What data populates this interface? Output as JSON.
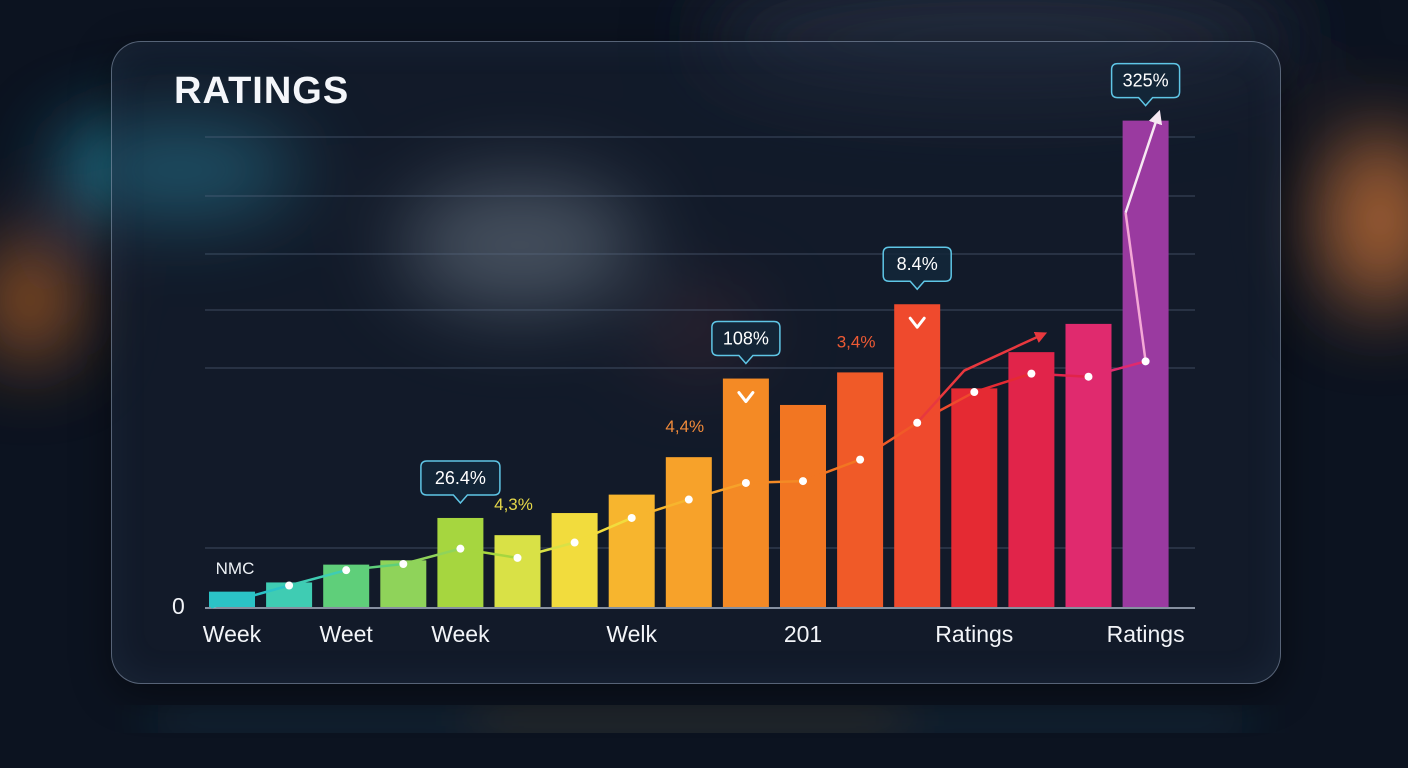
{
  "colors": {
    "background": "#0c1320",
    "panel_border": "#aabed7",
    "gridline": "#5a6b85",
    "axis": "#aeb8c8",
    "callout_border": "#5fc6e6",
    "bars": [
      "#2bc3c6",
      "#3fccb3",
      "#5fcf7a",
      "#8fd35a",
      "#a6d63f",
      "#d9e146",
      "#f2dc3d",
      "#f7b52e",
      "#f7a22a",
      "#f48a25",
      "#f27622",
      "#f05a28",
      "#ef4a2d",
      "#e52a33",
      "#e1244a",
      "#e02a6e",
      "#9a3aa0"
    ]
  },
  "chart_data": {
    "type": "bar",
    "title": "RATINGS",
    "bar_count": 17,
    "values": [
      2.5,
      4.0,
      6.9,
      7.6,
      14.5,
      11.7,
      15.3,
      18.3,
      24.4,
      37.2,
      32.9,
      38.2,
      49.3,
      35.6,
      41.5,
      46.1,
      79.2
    ],
    "trend_line": [
      null,
      3.5,
      6.0,
      7.0,
      9.5,
      8.0,
      10.5,
      14.5,
      17.5,
      20.2,
      20.5,
      24.0,
      30.0,
      35.0,
      38.0,
      37.5,
      40.0
    ],
    "ylim": [
      0,
      85
    ],
    "y_tick_label": "0",
    "x_tick_labels": [
      {
        "bar": 0,
        "text": "Week"
      },
      {
        "bar": 2,
        "text": "Weet"
      },
      {
        "bar": 4,
        "text": "Week"
      },
      {
        "bar": 7,
        "text": "Welk"
      },
      {
        "bar": 10,
        "text": "201"
      },
      {
        "bar": 13,
        "text": "Ratings"
      },
      {
        "bar": 16,
        "text": "Ratings"
      }
    ],
    "annotations": {
      "nmc": {
        "bar": 0,
        "text": "NMC"
      },
      "callouts": [
        {
          "bar": 4,
          "text": "26.4%"
        },
        {
          "bar": 9,
          "text": "108%"
        },
        {
          "bar": 12,
          "text": "8.4%"
        },
        {
          "bar": 16,
          "text": "325%"
        }
      ],
      "plain": [
        {
          "bar": 5,
          "text": "4,3%",
          "color": "#e5d84a"
        },
        {
          "bar": 8,
          "text": "4,4%",
          "color": "#f08a3a"
        },
        {
          "bar": 11,
          "text": "3,4%",
          "color": "#ee5a34"
        }
      ],
      "down_markers": [
        9,
        12
      ]
    },
    "grid": true,
    "legend": "none"
  }
}
